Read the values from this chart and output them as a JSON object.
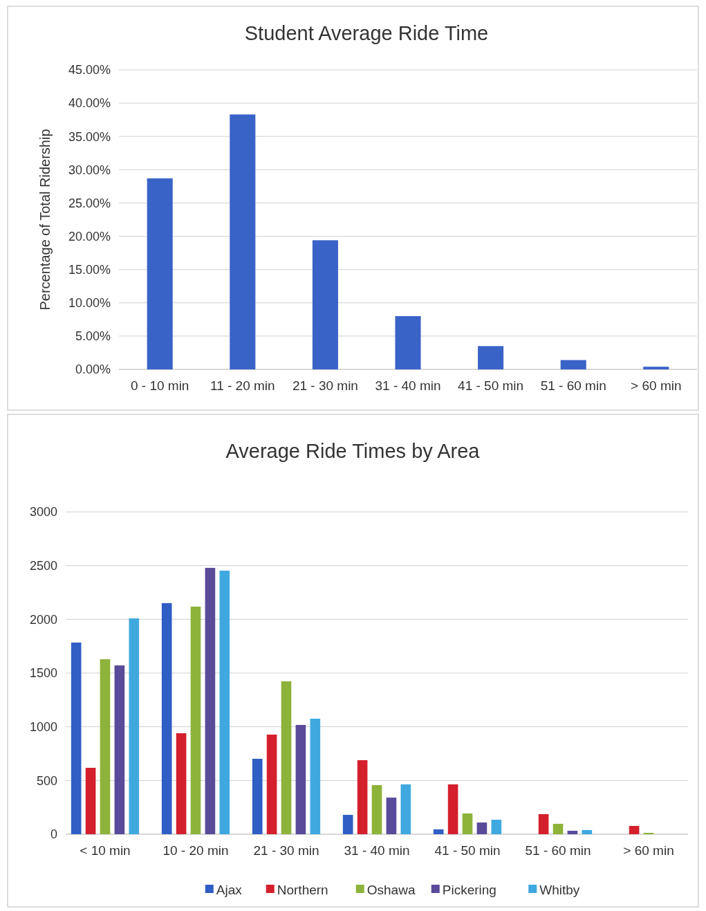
{
  "chart_data": [
    {
      "type": "bar",
      "title": "Student Average Ride Time",
      "ylabel": "Percentage of Total Ridership",
      "categories": [
        "0 - 10 min",
        "11 - 20 min",
        "21 - 30 min",
        "31 - 40 min",
        "41 - 50 min",
        "51 - 60 min",
        "> 60 min"
      ],
      "values": [
        28.7,
        38.3,
        19.4,
        8.0,
        3.5,
        1.4,
        0.4
      ],
      "color": "#3a63c8",
      "ylim": [
        0,
        45
      ],
      "yticks": [
        {
          "value": 0,
          "label": "0.00%"
        },
        {
          "value": 5,
          "label": "5.00%"
        },
        {
          "value": 10,
          "label": "10.00%"
        },
        {
          "value": 15,
          "label": "15.00%"
        },
        {
          "value": 20,
          "label": "20.00%"
        },
        {
          "value": 25,
          "label": "25.00%"
        },
        {
          "value": 30,
          "label": "30.00%"
        },
        {
          "value": 35,
          "label": "35.00%"
        },
        {
          "value": 40,
          "label": "40.00%"
        },
        {
          "value": 45,
          "label": "45.00%"
        }
      ],
      "grid": "y",
      "legend": false
    },
    {
      "type": "bar",
      "title": "Average Ride Times by Area",
      "categories": [
        "< 10 min",
        "10 - 20 min",
        "21 - 30 min",
        "31 - 40 min",
        "41 - 50 min",
        "51 - 60 min",
        "> 60 min"
      ],
      "series": [
        {
          "name": "Ajax",
          "color": "#2f5ec4",
          "values": [
            1784,
            2151,
            702,
            180,
            45,
            0,
            0
          ]
        },
        {
          "name": "Northern",
          "color": "#d4202c",
          "values": [
            618,
            940,
            927,
            689,
            464,
            187,
            77
          ]
        },
        {
          "name": "Oshawa",
          "color": "#8db33a",
          "values": [
            1629,
            2118,
            1423,
            457,
            193,
            97,
            13
          ]
        },
        {
          "name": "Pickering",
          "color": "#5a4a9a",
          "values": [
            1571,
            2479,
            1017,
            341,
            109,
            32,
            0
          ]
        },
        {
          "name": "Whitby",
          "color": "#3fa9df",
          "values": [
            2009,
            2453,
            1075,
            464,
            135,
            39,
            0
          ]
        }
      ],
      "ylim": [
        0,
        3000
      ],
      "yticks": [
        0,
        500,
        1000,
        1500,
        2000,
        2500,
        3000
      ],
      "grid": "y",
      "legend": "bottom"
    }
  ]
}
